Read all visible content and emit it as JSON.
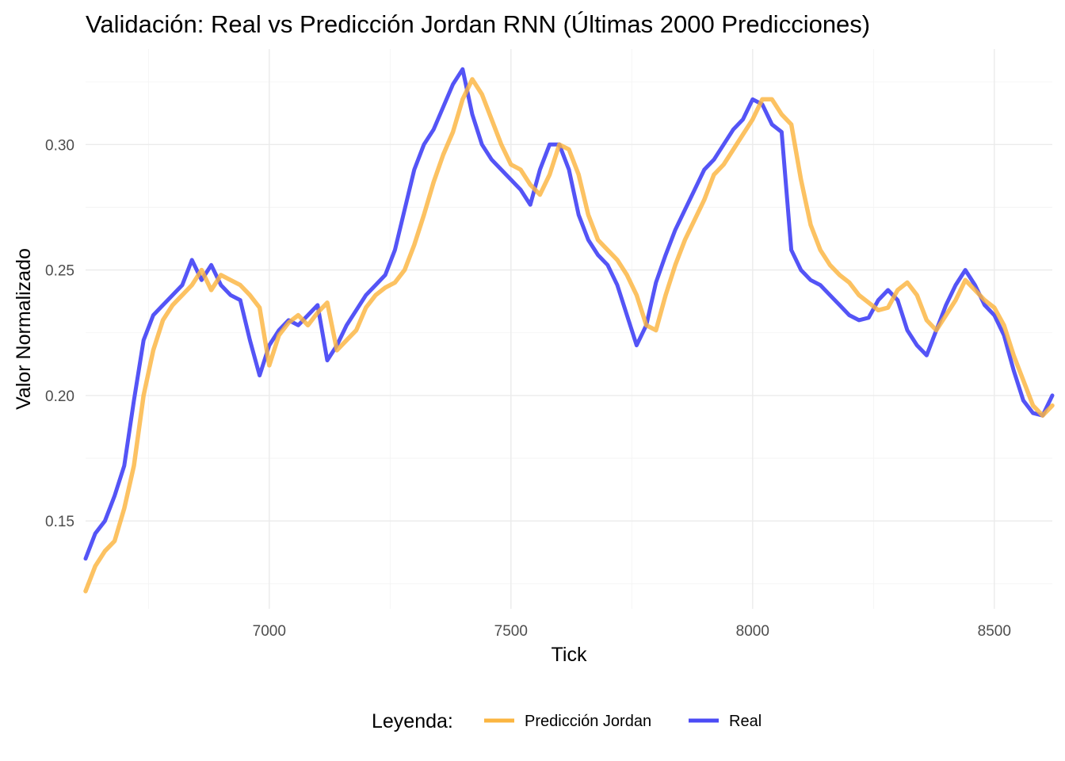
{
  "chart_data": {
    "type": "line",
    "title": "Validación: Real vs Predicción Jordan RNN (Últimas 2000 Predicciones)",
    "xlabel": "Tick",
    "ylabel": "Valor Normalizado",
    "xlim": [
      6620,
      8620
    ],
    "ylim": [
      0.115,
      0.338
    ],
    "x_ticks": [
      7000,
      7500,
      8000,
      8500
    ],
    "x_tick_labels": [
      "7000",
      "7500",
      "8000",
      "8500"
    ],
    "y_ticks": [
      0.15,
      0.2,
      0.25,
      0.3
    ],
    "y_tick_labels": [
      "0.15",
      "0.20",
      "0.25",
      "0.30"
    ],
    "grid": true,
    "legend": {
      "title": "Leyenda:",
      "position": "bottom"
    },
    "colors": {
      "real": "#4b4bf5",
      "prediction": "#fbb540"
    },
    "series": [
      {
        "name": "Predicción Jordan",
        "color": "#fbb540",
        "x": [
          6620,
          6640,
          6660,
          6680,
          6700,
          6720,
          6740,
          6760,
          6780,
          6800,
          6820,
          6840,
          6860,
          6880,
          6900,
          6920,
          6940,
          6960,
          6980,
          7000,
          7020,
          7040,
          7060,
          7080,
          7100,
          7120,
          7140,
          7160,
          7180,
          7200,
          7220,
          7240,
          7260,
          7280,
          7300,
          7320,
          7340,
          7360,
          7380,
          7400,
          7420,
          7440,
          7460,
          7480,
          7500,
          7520,
          7540,
          7560,
          7580,
          7600,
          7620,
          7640,
          7660,
          7680,
          7700,
          7720,
          7740,
          7760,
          7780,
          7800,
          7820,
          7840,
          7860,
          7880,
          7900,
          7920,
          7940,
          7960,
          7980,
          8000,
          8020,
          8040,
          8060,
          8080,
          8100,
          8120,
          8140,
          8160,
          8180,
          8200,
          8220,
          8240,
          8260,
          8280,
          8300,
          8320,
          8340,
          8360,
          8380,
          8400,
          8420,
          8440,
          8460,
          8480,
          8500,
          8520,
          8540,
          8560,
          8580,
          8600,
          8620
        ],
        "y": [
          0.122,
          0.132,
          0.138,
          0.142,
          0.155,
          0.172,
          0.2,
          0.218,
          0.23,
          0.236,
          0.24,
          0.244,
          0.25,
          0.242,
          0.248,
          0.246,
          0.244,
          0.24,
          0.235,
          0.212,
          0.224,
          0.229,
          0.232,
          0.228,
          0.233,
          0.237,
          0.218,
          0.222,
          0.226,
          0.235,
          0.24,
          0.243,
          0.245,
          0.25,
          0.26,
          0.272,
          0.285,
          0.296,
          0.305,
          0.318,
          0.326,
          0.32,
          0.31,
          0.3,
          0.292,
          0.29,
          0.284,
          0.28,
          0.288,
          0.3,
          0.298,
          0.288,
          0.272,
          0.262,
          0.258,
          0.254,
          0.248,
          0.24,
          0.228,
          0.226,
          0.24,
          0.252,
          0.262,
          0.27,
          0.278,
          0.288,
          0.292,
          0.298,
          0.304,
          0.31,
          0.318,
          0.318,
          0.312,
          0.308,
          0.286,
          0.268,
          0.258,
          0.252,
          0.248,
          0.245,
          0.24,
          0.237,
          0.234,
          0.235,
          0.242,
          0.245,
          0.24,
          0.23,
          0.226,
          0.232,
          0.238,
          0.246,
          0.242,
          0.238,
          0.235,
          0.228,
          0.216,
          0.206,
          0.196,
          0.192,
          0.196
        ]
      },
      {
        "name": "Real",
        "color": "#4b4bf5",
        "x": [
          6620,
          6640,
          6660,
          6680,
          6700,
          6720,
          6740,
          6760,
          6780,
          6800,
          6820,
          6840,
          6860,
          6880,
          6900,
          6920,
          6940,
          6960,
          6980,
          7000,
          7020,
          7040,
          7060,
          7080,
          7100,
          7120,
          7140,
          7160,
          7180,
          7200,
          7220,
          7240,
          7260,
          7280,
          7300,
          7320,
          7340,
          7360,
          7380,
          7400,
          7420,
          7440,
          7460,
          7480,
          7500,
          7520,
          7540,
          7560,
          7580,
          7600,
          7620,
          7640,
          7660,
          7680,
          7700,
          7720,
          7740,
          7760,
          7780,
          7800,
          7820,
          7840,
          7860,
          7880,
          7900,
          7920,
          7940,
          7960,
          7980,
          8000,
          8020,
          8040,
          8060,
          8080,
          8100,
          8120,
          8140,
          8160,
          8180,
          8200,
          8220,
          8240,
          8260,
          8280,
          8300,
          8320,
          8340,
          8360,
          8380,
          8400,
          8420,
          8440,
          8460,
          8480,
          8500,
          8520,
          8540,
          8560,
          8580,
          8600,
          8620
        ],
        "y": [
          0.135,
          0.145,
          0.15,
          0.16,
          0.172,
          0.198,
          0.222,
          0.232,
          0.236,
          0.24,
          0.244,
          0.254,
          0.246,
          0.252,
          0.244,
          0.24,
          0.238,
          0.222,
          0.208,
          0.22,
          0.226,
          0.23,
          0.228,
          0.232,
          0.236,
          0.214,
          0.22,
          0.228,
          0.234,
          0.24,
          0.244,
          0.248,
          0.258,
          0.274,
          0.29,
          0.3,
          0.306,
          0.315,
          0.324,
          0.33,
          0.312,
          0.3,
          0.294,
          0.29,
          0.286,
          0.282,
          0.276,
          0.29,
          0.3,
          0.3,
          0.29,
          0.272,
          0.262,
          0.256,
          0.252,
          0.244,
          0.232,
          0.22,
          0.228,
          0.245,
          0.256,
          0.266,
          0.274,
          0.282,
          0.29,
          0.294,
          0.3,
          0.306,
          0.31,
          0.318,
          0.316,
          0.308,
          0.305,
          0.258,
          0.25,
          0.246,
          0.244,
          0.24,
          0.236,
          0.232,
          0.23,
          0.231,
          0.238,
          0.242,
          0.238,
          0.226,
          0.22,
          0.216,
          0.226,
          0.236,
          0.244,
          0.25,
          0.244,
          0.236,
          0.232,
          0.224,
          0.21,
          0.198,
          0.193,
          0.192,
          0.2
        ]
      }
    ]
  }
}
